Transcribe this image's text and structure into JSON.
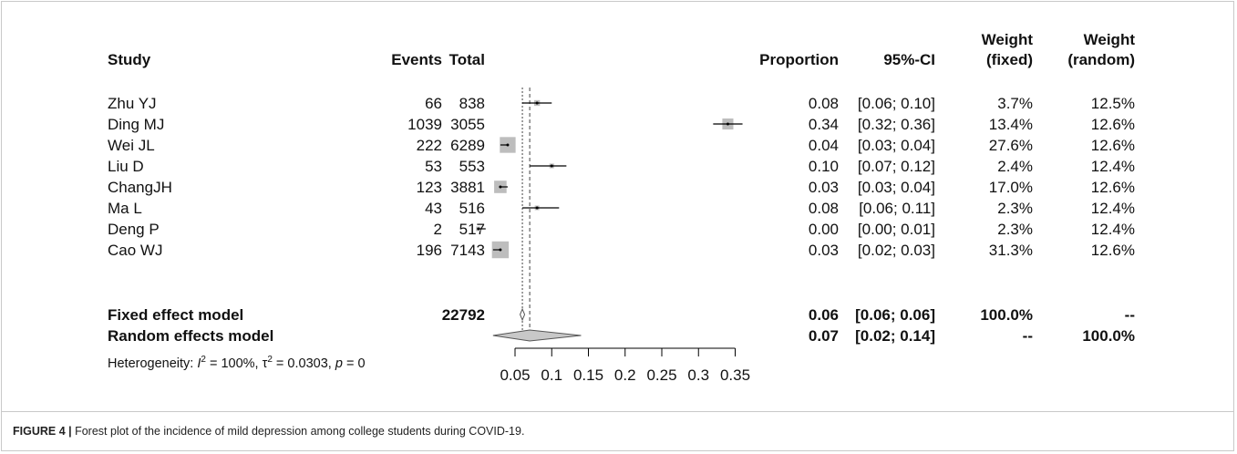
{
  "headers": {
    "study": "Study",
    "events": "Events",
    "total": "Total",
    "proportion": "Proportion",
    "ci": "95%-CI",
    "weight_fixed_1": "Weight",
    "weight_fixed_2": "(fixed)",
    "weight_random_1": "Weight",
    "weight_random_2": "(random)"
  },
  "studies": [
    {
      "study": "Zhu YJ",
      "events": "66",
      "total": "838",
      "proportion": "0.08",
      "ci": "[0.06; 0.10]",
      "w_fixed": "3.7%",
      "w_random": "12.5%"
    },
    {
      "study": "Ding MJ",
      "events": "1039",
      "total": "3055",
      "proportion": "0.34",
      "ci": "[0.32; 0.36]",
      "w_fixed": "13.4%",
      "w_random": "12.6%"
    },
    {
      "study": "Wei JL",
      "events": "222",
      "total": "6289",
      "proportion": "0.04",
      "ci": "[0.03; 0.04]",
      "w_fixed": "27.6%",
      "w_random": "12.6%"
    },
    {
      "study": "Liu D",
      "events": "53",
      "total": "553",
      "proportion": "0.10",
      "ci": "[0.07; 0.12]",
      "w_fixed": "2.4%",
      "w_random": "12.4%"
    },
    {
      "study": "ChangJH",
      "events": "123",
      "total": "3881",
      "proportion": "0.03",
      "ci": "[0.03; 0.04]",
      "w_fixed": "17.0%",
      "w_random": "12.6%"
    },
    {
      "study": "Ma L",
      "events": "43",
      "total": "516",
      "proportion": "0.08",
      "ci": "[0.06; 0.11]",
      "w_fixed": "2.3%",
      "w_random": "12.4%"
    },
    {
      "study": "Deng P",
      "events": "2",
      "total": "517",
      "proportion": "0.00",
      "ci": "[0.00; 0.01]",
      "w_fixed": "2.3%",
      "w_random": "12.4%"
    },
    {
      "study": "Cao WJ",
      "events": "196",
      "total": "7143",
      "proportion": "0.03",
      "ci": "[0.02; 0.03]",
      "w_fixed": "31.3%",
      "w_random": "12.6%"
    }
  ],
  "fixed": {
    "label": "Fixed effect model",
    "total": "22792",
    "proportion": "0.06",
    "ci": "[0.06; 0.06]",
    "w_fixed": "100.0%",
    "w_random": "--"
  },
  "random": {
    "label": "Random effects model",
    "proportion": "0.07",
    "ci": "[0.02; 0.14]",
    "w_fixed": "--",
    "w_random": "100.0%"
  },
  "heterogeneity": {
    "prefix": "Heterogeneity: ",
    "i2": "I",
    "i2_val": " = 100%, ",
    "tau": "τ",
    "tau_val": " = 0.0303, ",
    "p": "p",
    "p_val": " = 0"
  },
  "caption": {
    "label": "FIGURE 4 |",
    "text": " Forest plot of the incidence of mild depression among college students during COVID-19."
  },
  "chart_data": {
    "type": "forest",
    "x_ticks": [
      0.05,
      0.1,
      0.15,
      0.2,
      0.25,
      0.3,
      0.35
    ],
    "x_tick_labels": [
      "0.05",
      "0.1",
      "0.15",
      "0.2",
      "0.25",
      "0.3",
      "0.35"
    ],
    "xlim": [
      0.05,
      0.35
    ],
    "reference_lines": {
      "fixed": 0.06,
      "random": 0.07
    },
    "studies": [
      {
        "study": "Zhu YJ",
        "estimate": 0.08,
        "lower": 0.06,
        "upper": 0.1,
        "weight_fixed": 3.7
      },
      {
        "study": "Ding MJ",
        "estimate": 0.34,
        "lower": 0.32,
        "upper": 0.36,
        "weight_fixed": 13.4
      },
      {
        "study": "Wei JL",
        "estimate": 0.04,
        "lower": 0.03,
        "upper": 0.04,
        "weight_fixed": 27.6
      },
      {
        "study": "Liu D",
        "estimate": 0.1,
        "lower": 0.07,
        "upper": 0.12,
        "weight_fixed": 2.4
      },
      {
        "study": "ChangJH",
        "estimate": 0.03,
        "lower": 0.03,
        "upper": 0.04,
        "weight_fixed": 17.0
      },
      {
        "study": "Ma L",
        "estimate": 0.08,
        "lower": 0.06,
        "upper": 0.11,
        "weight_fixed": 2.3
      },
      {
        "study": "Deng P",
        "estimate": 0.0,
        "lower": 0.0,
        "upper": 0.01,
        "weight_fixed": 2.3
      },
      {
        "study": "Cao WJ",
        "estimate": 0.03,
        "lower": 0.02,
        "upper": 0.03,
        "weight_fixed": 31.3
      }
    ],
    "summary": [
      {
        "model": "Fixed effect model",
        "estimate": 0.06,
        "lower": 0.06,
        "upper": 0.06
      },
      {
        "model": "Random effects model",
        "estimate": 0.07,
        "lower": 0.02,
        "upper": 0.14
      }
    ],
    "colors": {
      "square": "#bdbdbd",
      "diamond": "#c8c8c8",
      "line": "#000000"
    }
  }
}
